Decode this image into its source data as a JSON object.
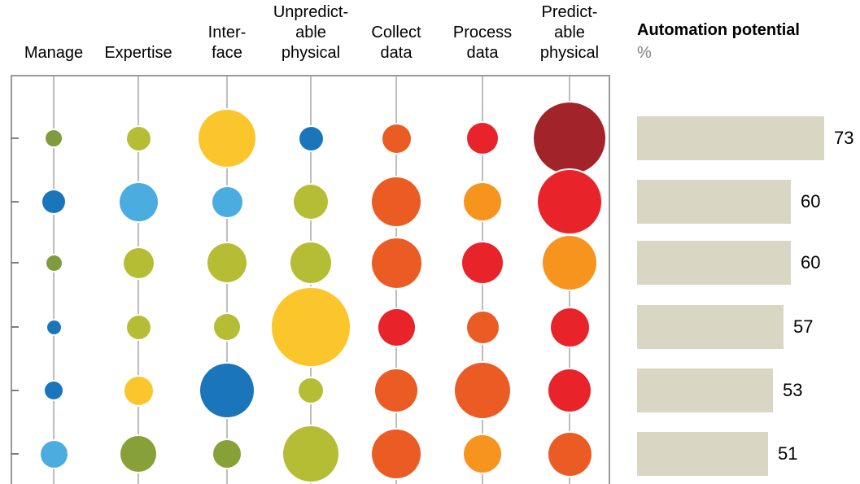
{
  "chart_data": {
    "type": "bubble",
    "title": "Automation potential",
    "unit": "%",
    "legend_position": "right",
    "grid": true,
    "columns": [
      {
        "id": "manage",
        "label": "Manage",
        "header_lines": [
          "Manage"
        ]
      },
      {
        "id": "expertise",
        "label": "Expertise",
        "header_lines": [
          "Expertise"
        ]
      },
      {
        "id": "interface",
        "label": "Interface",
        "header_lines": [
          "Inter-",
          "face"
        ]
      },
      {
        "id": "unpredictable-physical",
        "label": "Unpredictable physical",
        "header_lines": [
          "Unpredict-",
          "able",
          "physical"
        ]
      },
      {
        "id": "collect-data",
        "label": "Collect data",
        "header_lines": [
          "Collect",
          "data"
        ]
      },
      {
        "id": "process-data",
        "label": "Process data",
        "header_lines": [
          "Process",
          "data"
        ]
      },
      {
        "id": "predictable-physical",
        "label": "Predictable physical",
        "header_lines": [
          "Predict-",
          "able",
          "physical"
        ]
      }
    ],
    "automation_potential_values": [
      73,
      60,
      60,
      57,
      53,
      51
    ],
    "bar_color": "#D9D6C3",
    "palette": {
      "dark-olive": "#7E9C3D",
      "olive": "#87A038",
      "yellow-green": "#B5BD35",
      "yellow": "#FBC62C",
      "blue": "#1B75BB",
      "light-blue": "#4AACDF",
      "orange": "#EB5B24",
      "light-orange": "#F7941E",
      "red": "#E8232A",
      "dark-red": "#A2242A"
    },
    "rows": [
      {
        "bubbles": [
          {
            "color": "dark-olive",
            "diameter": 20
          },
          {
            "color": "yellow-green",
            "diameter": 29
          },
          {
            "color": "yellow",
            "diameter": 70
          },
          {
            "color": "blue",
            "diameter": 29
          },
          {
            "color": "orange",
            "diameter": 35
          },
          {
            "color": "red",
            "diameter": 38
          },
          {
            "color": "dark-red",
            "diameter": 88
          }
        ]
      },
      {
        "bubbles": [
          {
            "color": "blue",
            "diameter": 28
          },
          {
            "color": "light-blue",
            "diameter": 47
          },
          {
            "color": "light-blue",
            "diameter": 37
          },
          {
            "color": "yellow-green",
            "diameter": 42
          },
          {
            "color": "orange",
            "diameter": 60
          },
          {
            "color": "light-orange",
            "diameter": 46
          },
          {
            "color": "red",
            "diameter": 78
          }
        ]
      },
      {
        "bubbles": [
          {
            "color": "dark-olive",
            "diameter": 19
          },
          {
            "color": "yellow-green",
            "diameter": 37
          },
          {
            "color": "yellow-green",
            "diameter": 48
          },
          {
            "color": "yellow-green",
            "diameter": 50
          },
          {
            "color": "orange",
            "diameter": 61
          },
          {
            "color": "red",
            "diameter": 50
          },
          {
            "color": "light-orange",
            "diameter": 66
          }
        ]
      },
      {
        "bubbles": [
          {
            "color": "blue",
            "diameter": 17
          },
          {
            "color": "yellow-green",
            "diameter": 29
          },
          {
            "color": "yellow-green",
            "diameter": 32
          },
          {
            "color": "yellow",
            "diameter": 96
          },
          {
            "color": "red",
            "diameter": 45
          },
          {
            "color": "orange",
            "diameter": 39
          },
          {
            "color": "red",
            "diameter": 47
          }
        ]
      },
      {
        "bubbles": [
          {
            "color": "blue",
            "diameter": 22
          },
          {
            "color": "yellow",
            "diameter": 35
          },
          {
            "color": "blue",
            "diameter": 66
          },
          {
            "color": "yellow-green",
            "diameter": 30
          },
          {
            "color": "orange",
            "diameter": 52
          },
          {
            "color": "orange",
            "diameter": 68
          },
          {
            "color": "red",
            "diameter": 52
          }
        ]
      },
      {
        "bubbles": [
          {
            "color": "light-blue",
            "diameter": 33
          },
          {
            "color": "olive",
            "diameter": 44
          },
          {
            "color": "olive",
            "diameter": 34
          },
          {
            "color": "yellow-green",
            "diameter": 68
          },
          {
            "color": "orange",
            "diameter": 60
          },
          {
            "color": "light-orange",
            "diameter": 46
          },
          {
            "color": "orange",
            "diameter": 53
          }
        ]
      }
    ]
  }
}
